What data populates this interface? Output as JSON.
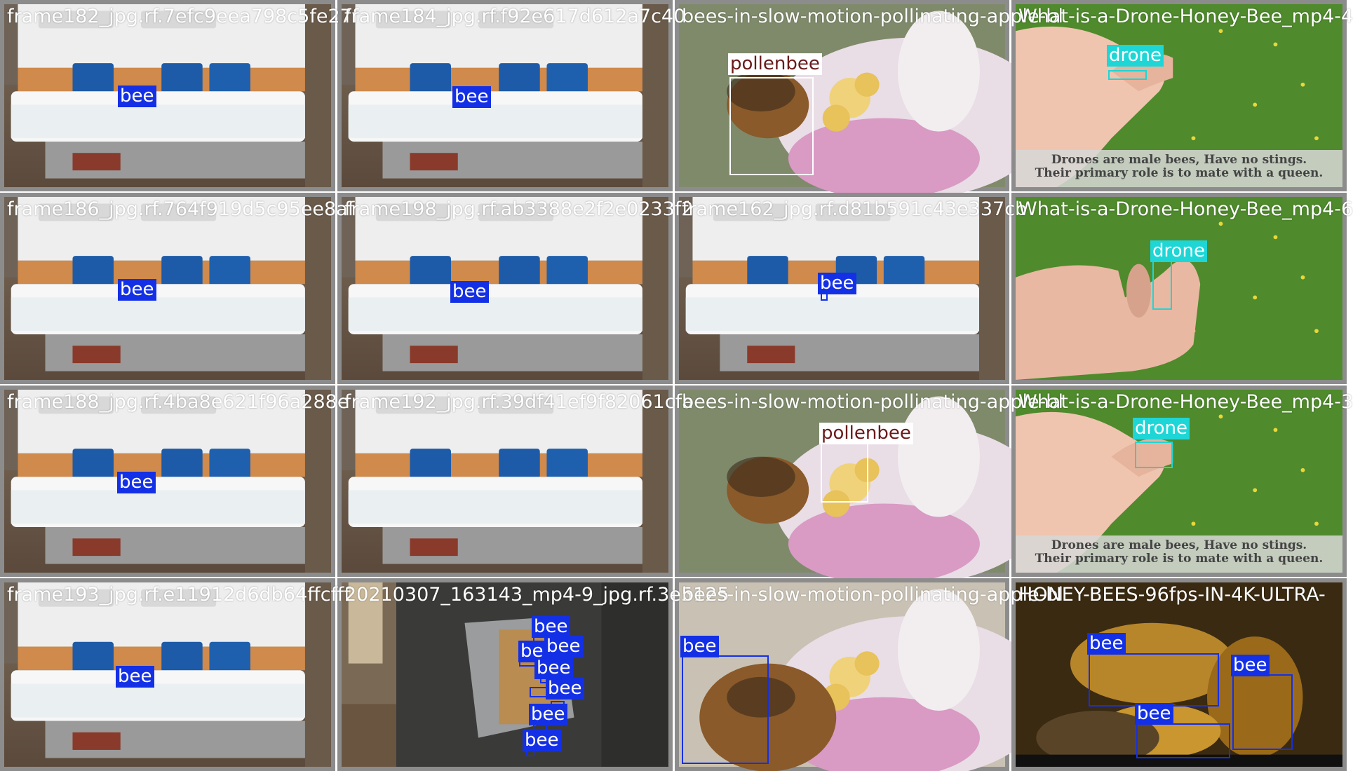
{
  "colors": {
    "bee": "#1430e6",
    "pollenbee": "#ffffff",
    "drone": "#1ed6d6"
  },
  "tiles": [
    {
      "filename": "frame182_jpg.rf.7efc9eea798c5fe27f",
      "scene": "hive",
      "labels": [
        {
          "cls": "bee",
          "text": "bee"
        }
      ]
    },
    {
      "filename": "frame184_jpg.rf.f92e617d612a7c40",
      "scene": "hive",
      "labels": [
        {
          "cls": "bee",
          "text": "bee"
        }
      ]
    },
    {
      "filename": "bees-in-slow-motion-pollinating-apple-bl",
      "scene": "flower1",
      "labels": [
        {
          "cls": "pollenbee",
          "text": "pollenbee"
        }
      ]
    },
    {
      "filename": "What-is-a-Drone-Honey-Bee_mp4-4",
      "scene": "hand1",
      "caption1": "Drones are male bees, Have no stings.",
      "caption2": "Their primary role is to mate with a queen.",
      "labels": [
        {
          "cls": "drone",
          "text": "drone"
        }
      ]
    },
    {
      "filename": "frame186_jpg.rf.764f919d5c95ee8af",
      "scene": "hive",
      "labels": [
        {
          "cls": "bee",
          "text": "bee"
        }
      ]
    },
    {
      "filename": "frame198_jpg.rf.ab3388e2f2e0233f2",
      "scene": "hive",
      "labels": [
        {
          "cls": "bee",
          "text": "bee"
        }
      ]
    },
    {
      "filename": "frame162_jpg.rf.d81b591c43e337cb",
      "scene": "hive",
      "labels": [
        {
          "cls": "bee",
          "text": "bee"
        }
      ]
    },
    {
      "filename": "What-is-a-Drone-Honey-Bee_mp4-6",
      "scene": "hand2",
      "labels": [
        {
          "cls": "drone",
          "text": "drone"
        }
      ]
    },
    {
      "filename": "frame188_jpg.rf.4ba8e621f96a288e",
      "scene": "hive",
      "labels": [
        {
          "cls": "bee",
          "text": "bee"
        }
      ]
    },
    {
      "filename": "frame192_jpg.rf.39df41ef9f82061cfa",
      "scene": "hive",
      "labels": []
    },
    {
      "filename": "bees-in-slow-motion-pollinating-apple-bl",
      "scene": "flower2",
      "labels": [
        {
          "cls": "pollenbee",
          "text": "pollenbee"
        }
      ]
    },
    {
      "filename": "What-is-a-Drone-Honey-Bee_mp4-3",
      "scene": "hand3",
      "caption1": "Drones are male bees, Have no stings.",
      "caption2": "Their primary role is to mate with a queen.",
      "labels": [
        {
          "cls": "drone",
          "text": "drone"
        }
      ]
    },
    {
      "filename": "frame193_jpg.rf.e11912d6db64ffcfff",
      "scene": "hive",
      "labels": [
        {
          "cls": "bee",
          "text": "bee"
        }
      ]
    },
    {
      "filename": "20210307_163143_mp4-9_jpg.rf.3e5125",
      "scene": "board",
      "labels": [
        {
          "cls": "bee",
          "text": "bee"
        },
        {
          "cls": "bee",
          "text": "bee"
        },
        {
          "cls": "bee",
          "text": "bee"
        },
        {
          "cls": "bee",
          "text": "bee"
        },
        {
          "cls": "bee",
          "text": "bee"
        },
        {
          "cls": "bee",
          "text": "bee"
        },
        {
          "cls": "bee",
          "text": "bee"
        }
      ]
    },
    {
      "filename": "bees-in-slow-motion-pollinating-apple-bl",
      "scene": "flower3",
      "labels": [
        {
          "cls": "bee",
          "text": "bee"
        }
      ]
    },
    {
      "filename": "HONEY-BEES-96fps-IN-4K-ULTRA-",
      "scene": "honey",
      "labels": [
        {
          "cls": "bee",
          "text": "bee"
        },
        {
          "cls": "bee",
          "text": "bee"
        },
        {
          "cls": "bee",
          "text": "bee"
        }
      ]
    }
  ]
}
